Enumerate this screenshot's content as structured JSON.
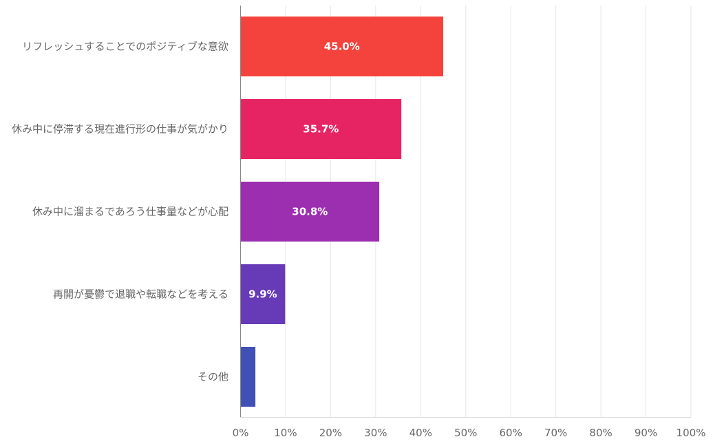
{
  "chart_data": {
    "type": "bar",
    "orientation": "horizontal",
    "categories": [
      "リフレッシュすることでのポジティブな意欲",
      "休み中に停滞する現在進行形の仕事が気がかり",
      "休み中に溜まるであろう仕事量などが心配",
      "再開が憂鬱で退職や転職などを考える",
      "その他"
    ],
    "values": [
      45.0,
      35.7,
      30.8,
      9.9,
      3.3
    ],
    "data_labels": [
      "45.0%",
      "35.7%",
      "30.8%",
      "9.9%",
      ""
    ],
    "colors": [
      "#f4433c",
      "#e72463",
      "#9c2eb0",
      "#673bb7",
      "#3f51b5"
    ],
    "xlim": [
      0,
      100
    ],
    "x_ticks": [
      "0%",
      "10%",
      "20%",
      "30%",
      "40%",
      "50%",
      "60%",
      "70%",
      "80%",
      "90%",
      "100%"
    ],
    "grid": true,
    "title": "",
    "xlabel": "",
    "ylabel": ""
  }
}
